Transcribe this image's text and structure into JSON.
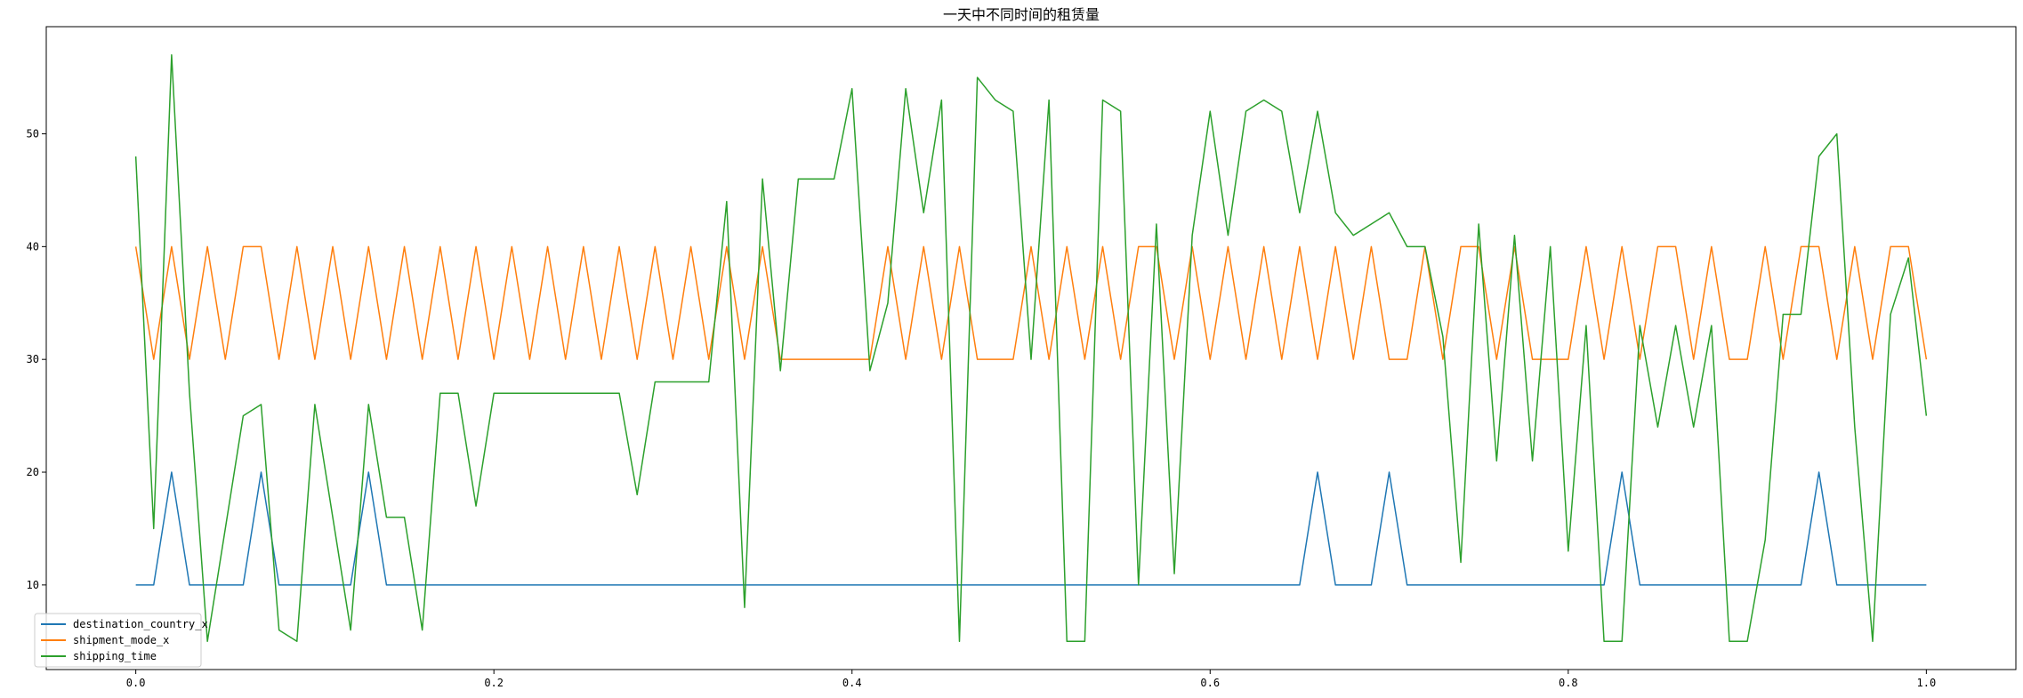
{
  "chart_data": {
    "type": "line",
    "title": "一天中不同时间的租赁量",
    "xlabel": "",
    "ylabel": "",
    "xlim": [
      -0.05,
      1.05
    ],
    "ylim": [
      2.5,
      59.5
    ],
    "xticks": [
      0.0,
      0.2,
      0.4,
      0.6,
      0.8,
      1.0
    ],
    "xtick_labels": [
      "0.0",
      "0.2",
      "0.4",
      "0.6",
      "0.8",
      "1.0"
    ],
    "yticks": [
      10,
      20,
      30,
      40,
      50
    ],
    "ytick_labels": [
      "10",
      "20",
      "30",
      "40",
      "50"
    ],
    "grid": false,
    "legend_position": "lower-left",
    "x": [
      0.0,
      0.01,
      0.02,
      0.03,
      0.04,
      0.05,
      0.06,
      0.07,
      0.08,
      0.09,
      0.1,
      0.11,
      0.12,
      0.13,
      0.14,
      0.15,
      0.16,
      0.17,
      0.18,
      0.19,
      0.2,
      0.21,
      0.22,
      0.23,
      0.24,
      0.25,
      0.26,
      0.27,
      0.28,
      0.29,
      0.3,
      0.31,
      0.32,
      0.33,
      0.34,
      0.35,
      0.36,
      0.37,
      0.38,
      0.39,
      0.4,
      0.41,
      0.42,
      0.43,
      0.44,
      0.45,
      0.46,
      0.47,
      0.48,
      0.49,
      0.5,
      0.51,
      0.52,
      0.53,
      0.54,
      0.55,
      0.56,
      0.57,
      0.58,
      0.59,
      0.6,
      0.61,
      0.62,
      0.63,
      0.64,
      0.65,
      0.66,
      0.67,
      0.68,
      0.69,
      0.7,
      0.71,
      0.72,
      0.73,
      0.74,
      0.75,
      0.76,
      0.77,
      0.78,
      0.79,
      0.8,
      0.81,
      0.82,
      0.83,
      0.84,
      0.85,
      0.86,
      0.87,
      0.88,
      0.89,
      0.9,
      0.91,
      0.92,
      0.93,
      0.94,
      0.95,
      0.96,
      0.97,
      0.98,
      0.99,
      1.0
    ],
    "series": [
      {
        "name": "destination_country_x",
        "color": "#1f77b4",
        "values": [
          10,
          10,
          20,
          10,
          10,
          10,
          10,
          20,
          10,
          10,
          10,
          10,
          10,
          20,
          10,
          10,
          10,
          10,
          10,
          10,
          10,
          10,
          10,
          10,
          10,
          10,
          10,
          10,
          10,
          10,
          10,
          10,
          10,
          10,
          10,
          10,
          10,
          10,
          10,
          10,
          10,
          10,
          10,
          10,
          10,
          10,
          10,
          10,
          10,
          10,
          10,
          10,
          10,
          10,
          10,
          10,
          10,
          10,
          10,
          10,
          10,
          10,
          10,
          10,
          10,
          10,
          20,
          10,
          10,
          10,
          20,
          10,
          10,
          10,
          10,
          10,
          10,
          10,
          10,
          10,
          10,
          10,
          10,
          20,
          10,
          10,
          10,
          10,
          10,
          10,
          10,
          10,
          10,
          10,
          20,
          10,
          10,
          10,
          10,
          10,
          10
        ]
      },
      {
        "name": "shipment_mode_x",
        "color": "#ff7f0e",
        "values": [
          40,
          30,
          40,
          30,
          40,
          30,
          40,
          40,
          30,
          40,
          30,
          40,
          30,
          40,
          30,
          40,
          30,
          40,
          30,
          40,
          30,
          40,
          30,
          40,
          30,
          40,
          30,
          40,
          30,
          40,
          30,
          40,
          30,
          40,
          30,
          40,
          30,
          30,
          30,
          30,
          30,
          30,
          40,
          30,
          40,
          30,
          40,
          30,
          30,
          30,
          40,
          30,
          40,
          30,
          40,
          30,
          40,
          40,
          30,
          40,
          30,
          40,
          30,
          40,
          30,
          40,
          30,
          40,
          30,
          40,
          30,
          30,
          40,
          30,
          40,
          40,
          30,
          40,
          30,
          30,
          30,
          40,
          30,
          40,
          30,
          40,
          40,
          30,
          40,
          30,
          30,
          40,
          30,
          40,
          40,
          30,
          40,
          30,
          40,
          40,
          30
        ]
      },
      {
        "name": "shipping_time",
        "color": "#2ca02c",
        "values": [
          48,
          15,
          57,
          27,
          5,
          15,
          25,
          26,
          6,
          5,
          26,
          16,
          6,
          26,
          16,
          16,
          6,
          27,
          27,
          17,
          27,
          27,
          27,
          27,
          27,
          27,
          27,
          27,
          18,
          28,
          28,
          28,
          28,
          44,
          8,
          46,
          29,
          46,
          46,
          46,
          54,
          29,
          35,
          54,
          43,
          53,
          5,
          55,
          53,
          52,
          30,
          53,
          5,
          5,
          53,
          52,
          10,
          42,
          11,
          41,
          52,
          41,
          52,
          53,
          52,
          43,
          52,
          43,
          41,
          42,
          43,
          40,
          40,
          32,
          12,
          42,
          21,
          41,
          21,
          40,
          13,
          33,
          5,
          5,
          33,
          24,
          33,
          24,
          33,
          5,
          5,
          14,
          34,
          34,
          48,
          50,
          24,
          5,
          34,
          39,
          25
        ]
      }
    ]
  }
}
